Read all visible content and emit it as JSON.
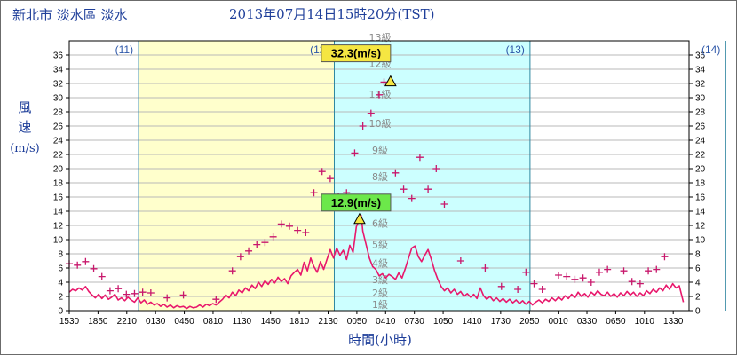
{
  "header": {
    "location": "新北市 淡水區 淡水",
    "timestamp": "2013年07月14日15時20分(TST)"
  },
  "colors": {
    "line": "#e8186c",
    "gust": "#c8186c",
    "band_yesterday": "#ffffcc",
    "band_today": "#ccffff",
    "day_line": "#2e86a0",
    "axis_text": "#1f3f9a",
    "peak_box": "#f5e642",
    "mean_box": "#6ce84a"
  },
  "chart_data": {
    "type": "line",
    "xlabel": "時間(小時)",
    "ylabel": [
      "風",
      "速",
      "(m/s)"
    ],
    "ylim": [
      0,
      38
    ],
    "yticks": [
      "0",
      "2",
      "4",
      "6",
      "8",
      "10",
      "12",
      "14",
      "16",
      "18",
      "20",
      "22",
      "24",
      "26",
      "28",
      "30",
      "32",
      "34",
      "36"
    ],
    "xticks": [
      "1530",
      "1850",
      "2210",
      "0130",
      "0450",
      "0810",
      "1130",
      "1450",
      "1810",
      "2130",
      "0050",
      "0410",
      "0730",
      "1050",
      "1410",
      "1730",
      "2050",
      "0010",
      "0330",
      "0650",
      "1010",
      "1330"
    ],
    "day_labels": [
      {
        "label": "(11)",
        "hours": 8.5
      },
      {
        "label": "(12)",
        "hours": 32.5
      },
      {
        "label": "(13)",
        "hours": 56.5
      },
      {
        "label": "(14)",
        "hours": 80.5
      }
    ],
    "day_boundaries_hours": [
      8.5,
      32.5,
      56.5,
      80.5
    ],
    "bands": [
      {
        "from_hours": 8.5,
        "to_hours": 32.5,
        "color": "#ffffcc"
      },
      {
        "from_hours": 32.5,
        "to_hours": 56.5,
        "color": "#ccffff"
      }
    ],
    "beaufort_levels": [
      {
        "label": "1級",
        "value": 0.9
      },
      {
        "label": "2級",
        "value": 2.5
      },
      {
        "label": "3級",
        "value": 4.4
      },
      {
        "label": "4級",
        "value": 6.7
      },
      {
        "label": "5級",
        "value": 9.3
      },
      {
        "label": "6級",
        "value": 12.3
      },
      {
        "label": "7級",
        "value": 15.5
      },
      {
        "label": "8級",
        "value": 18.9
      },
      {
        "label": "9級",
        "value": 22.6
      },
      {
        "label": "10級",
        "value": 26.4
      },
      {
        "label": "11級",
        "value": 30.5
      },
      {
        "label": "12級",
        "value": 34.8
      },
      {
        "label": "13級",
        "value": 38.5
      }
    ],
    "series": [
      {
        "kind": "line",
        "points": [
          [
            0,
            2.6
          ],
          [
            0.4,
            3.0
          ],
          [
            0.8,
            2.8
          ],
          [
            1.2,
            3.2
          ],
          [
            1.6,
            2.9
          ],
          [
            2,
            3.4
          ],
          [
            2.4,
            2.7
          ],
          [
            2.8,
            2.2
          ],
          [
            3.2,
            1.8
          ],
          [
            3.6,
            2.3
          ],
          [
            4,
            1.7
          ],
          [
            4.4,
            2.2
          ],
          [
            4.8,
            1.6
          ],
          [
            5.2,
            1.9
          ],
          [
            5.6,
            2.3
          ],
          [
            6,
            1.5
          ],
          [
            6.4,
            1.8
          ],
          [
            6.8,
            1.4
          ],
          [
            7.2,
            1.9
          ],
          [
            7.6,
            1.5
          ],
          [
            8,
            1.2
          ],
          [
            8.4,
            1.8
          ],
          [
            8.8,
            1.1
          ],
          [
            9.2,
            1.5
          ],
          [
            9.6,
            0.9
          ],
          [
            10,
            1.2
          ],
          [
            10.4,
            0.8
          ],
          [
            10.8,
            1.0
          ],
          [
            11.2,
            0.6
          ],
          [
            11.6,
            0.9
          ],
          [
            12,
            0.5
          ],
          [
            12.4,
            0.8
          ],
          [
            12.8,
            0.4
          ],
          [
            13.2,
            0.7
          ],
          [
            13.6,
            0.5
          ],
          [
            14,
            0.6
          ],
          [
            14.4,
            0.3
          ],
          [
            14.8,
            0.6
          ],
          [
            15.2,
            0.4
          ],
          [
            15.6,
            0.5
          ],
          [
            16,
            0.8
          ],
          [
            16.4,
            0.5
          ],
          [
            16.8,
            0.9
          ],
          [
            17.2,
            0.7
          ],
          [
            17.6,
            1.0
          ],
          [
            18,
            0.8
          ],
          [
            18.4,
            1.2
          ],
          [
            18.8,
            1.6
          ],
          [
            19.2,
            2.2
          ],
          [
            19.6,
            1.8
          ],
          [
            20,
            2.6
          ],
          [
            20.4,
            2.1
          ],
          [
            20.8,
            2.9
          ],
          [
            21.2,
            2.5
          ],
          [
            21.6,
            3.2
          ],
          [
            22,
            2.8
          ],
          [
            22.4,
            3.6
          ],
          [
            22.8,
            3.1
          ],
          [
            23.2,
            4.0
          ],
          [
            23.6,
            3.4
          ],
          [
            24,
            4.2
          ],
          [
            24.4,
            3.7
          ],
          [
            24.8,
            4.4
          ],
          [
            25.2,
            3.9
          ],
          [
            25.6,
            4.7
          ],
          [
            26,
            4.1
          ],
          [
            26.4,
            4.5
          ],
          [
            26.8,
            3.8
          ],
          [
            27.2,
            4.9
          ],
          [
            27.6,
            5.4
          ],
          [
            28,
            5.8
          ],
          [
            28.4,
            5.0
          ],
          [
            28.8,
            6.8
          ],
          [
            29.2,
            5.6
          ],
          [
            29.6,
            7.4
          ],
          [
            30,
            6.2
          ],
          [
            30.4,
            5.4
          ],
          [
            30.8,
            6.9
          ],
          [
            31.2,
            5.8
          ],
          [
            31.6,
            7.2
          ],
          [
            32,
            8.6
          ],
          [
            32.4,
            7.4
          ],
          [
            32.8,
            8.8
          ],
          [
            33.2,
            7.8
          ],
          [
            33.6,
            8.5
          ],
          [
            34,
            7.2
          ],
          [
            34.4,
            9.2
          ],
          [
            34.8,
            8.2
          ],
          [
            35.2,
            11.8
          ],
          [
            35.6,
            12.9
          ],
          [
            35.8,
            13.4
          ],
          [
            36,
            11.2
          ],
          [
            36.4,
            9.3
          ],
          [
            36.8,
            7.4
          ],
          [
            37.2,
            6.2
          ],
          [
            37.6,
            5.8
          ],
          [
            38,
            4.9
          ],
          [
            38.4,
            5.2
          ],
          [
            38.8,
            4.6
          ],
          [
            39.2,
            5.1
          ],
          [
            39.6,
            4.8
          ],
          [
            40,
            4.4
          ],
          [
            40.4,
            5.3
          ],
          [
            40.8,
            4.6
          ],
          [
            41.2,
            5.9
          ],
          [
            41.6,
            7.4
          ],
          [
            42,
            8.8
          ],
          [
            42.4,
            9.1
          ],
          [
            42.8,
            7.6
          ],
          [
            43.2,
            6.9
          ],
          [
            43.6,
            7.8
          ],
          [
            44,
            8.6
          ],
          [
            44.4,
            7.2
          ],
          [
            44.8,
            5.6
          ],
          [
            45.2,
            4.4
          ],
          [
            45.6,
            3.4
          ],
          [
            46,
            2.8
          ],
          [
            46.4,
            3.2
          ],
          [
            46.8,
            2.5
          ],
          [
            47.2,
            3.0
          ],
          [
            47.6,
            2.3
          ],
          [
            48,
            2.7
          ],
          [
            48.4,
            2.0
          ],
          [
            48.8,
            2.4
          ],
          [
            49.2,
            1.9
          ],
          [
            49.6,
            2.3
          ],
          [
            50,
            1.7
          ],
          [
            50.4,
            3.2
          ],
          [
            50.8,
            2.1
          ],
          [
            51.2,
            1.6
          ],
          [
            51.6,
            2.0
          ],
          [
            52,
            1.4
          ],
          [
            52.4,
            1.8
          ],
          [
            52.8,
            1.3
          ],
          [
            53.2,
            1.7
          ],
          [
            53.6,
            1.2
          ],
          [
            54,
            1.6
          ],
          [
            54.4,
            1.1
          ],
          [
            54.8,
            1.5
          ],
          [
            55.2,
            1.0
          ],
          [
            55.6,
            1.4
          ],
          [
            56,
            0.9
          ],
          [
            56.4,
            1.3
          ],
          [
            56.8,
            0.8
          ],
          [
            57.2,
            1.2
          ],
          [
            57.6,
            1.5
          ],
          [
            58,
            1.1
          ],
          [
            58.4,
            1.6
          ],
          [
            58.8,
            1.3
          ],
          [
            59.2,
            1.8
          ],
          [
            59.6,
            1.4
          ],
          [
            60,
            1.9
          ],
          [
            60.4,
            1.5
          ],
          [
            60.8,
            2.1
          ],
          [
            61.2,
            1.7
          ],
          [
            61.6,
            2.3
          ],
          [
            62,
            1.8
          ],
          [
            62.4,
            2.6
          ],
          [
            62.8,
            2.0
          ],
          [
            63.2,
            2.4
          ],
          [
            63.6,
            1.9
          ],
          [
            64,
            2.6
          ],
          [
            64.4,
            2.2
          ],
          [
            64.8,
            2.8
          ],
          [
            65.2,
            2.3
          ],
          [
            65.6,
            2.1
          ],
          [
            66,
            2.6
          ],
          [
            66.4,
            2.0
          ],
          [
            66.8,
            2.4
          ],
          [
            67.2,
            1.9
          ],
          [
            67.6,
            2.5
          ],
          [
            68,
            2.1
          ],
          [
            68.4,
            2.7
          ],
          [
            68.8,
            2.2
          ],
          [
            69.2,
            2.6
          ],
          [
            69.6,
            2.0
          ],
          [
            70,
            2.5
          ],
          [
            70.4,
            2.1
          ],
          [
            70.8,
            2.8
          ],
          [
            71.2,
            2.4
          ],
          [
            71.6,
            3.0
          ],
          [
            72,
            2.6
          ],
          [
            72.4,
            3.2
          ],
          [
            72.8,
            2.8
          ],
          [
            73.2,
            3.6
          ],
          [
            73.6,
            3.0
          ],
          [
            74,
            3.8
          ],
          [
            74.4,
            3.2
          ],
          [
            74.8,
            3.5
          ],
          [
            75,
            2.6
          ],
          [
            75.3,
            1.2
          ]
        ]
      },
      {
        "kind": "gust",
        "points": [
          [
            0,
            6.6
          ],
          [
            1,
            6.4
          ],
          [
            2,
            6.9
          ],
          [
            3,
            5.9
          ],
          [
            4,
            4.8
          ],
          [
            5,
            2.8
          ],
          [
            6,
            3.1
          ],
          [
            7,
            2.3
          ],
          [
            8,
            2.4
          ],
          [
            9,
            2.6
          ],
          [
            10,
            2.5
          ],
          [
            12,
            1.8
          ],
          [
            14,
            2.2
          ],
          [
            18,
            1.6
          ],
          [
            20,
            5.6
          ],
          [
            21,
            7.6
          ],
          [
            22,
            8.4
          ],
          [
            23,
            9.3
          ],
          [
            24,
            9.6
          ],
          [
            25,
            10.4
          ],
          [
            26,
            12.2
          ],
          [
            27,
            11.9
          ],
          [
            28,
            11.3
          ],
          [
            29,
            11.0
          ],
          [
            30,
            16.6
          ],
          [
            31,
            19.6
          ],
          [
            32,
            18.6
          ],
          [
            33,
            16.0
          ],
          [
            34,
            16.6
          ],
          [
            35,
            22.2
          ],
          [
            36,
            26.0
          ],
          [
            37,
            27.8
          ],
          [
            38,
            30.4
          ],
          [
            38.6,
            32.2
          ],
          [
            40,
            19.4
          ],
          [
            41,
            17.1
          ],
          [
            42,
            15.8
          ],
          [
            43,
            21.6
          ],
          [
            44,
            17.1
          ],
          [
            45,
            20.0
          ],
          [
            46,
            15.0
          ],
          [
            48,
            7.0
          ],
          [
            51,
            6.0
          ],
          [
            53,
            3.4
          ],
          [
            55,
            3.0
          ],
          [
            56,
            5.4
          ],
          [
            57,
            3.8
          ],
          [
            58,
            3.0
          ],
          [
            60,
            5.0
          ],
          [
            61,
            4.8
          ],
          [
            62,
            4.4
          ],
          [
            63,
            4.6
          ],
          [
            64,
            4.0
          ],
          [
            65,
            5.4
          ],
          [
            66,
            5.8
          ],
          [
            68,
            5.6
          ],
          [
            69,
            4.1
          ],
          [
            70,
            3.8
          ],
          [
            71,
            5.6
          ],
          [
            72,
            5.8
          ],
          [
            73,
            7.6
          ]
        ]
      }
    ],
    "annotations": [
      {
        "label": "32.3(m/s)",
        "hours": 39.4,
        "value": 32.3,
        "box": "peak"
      },
      {
        "label": "12.9(m/s)",
        "hours": 35.6,
        "value": 12.9,
        "box": "mean"
      }
    ]
  }
}
